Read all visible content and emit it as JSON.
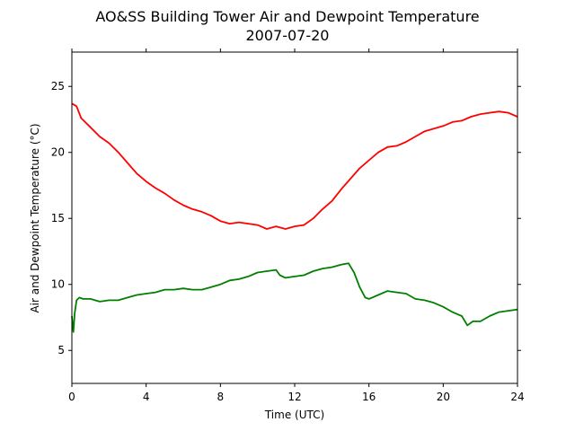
{
  "chart_data": {
    "type": "line",
    "title": "AO&SS Building Tower Air and Dewpoint Temperature",
    "subtitle": "2007-07-20",
    "xlabel": "Time (UTC)",
    "ylabel": "Air and Dewpoint Temperature (°C)",
    "xlim": [
      0,
      24
    ],
    "ylim": [
      2.5,
      27.6
    ],
    "xticks": [
      0,
      4,
      8,
      12,
      16,
      20,
      24
    ],
    "yticks": [
      5,
      10,
      15,
      20,
      25
    ],
    "grid": false,
    "series": [
      {
        "color": "#ff0000",
        "x": [
          0,
          0.25,
          0.5,
          1,
          1.5,
          2,
          2.5,
          3,
          3.5,
          4,
          4.5,
          5,
          5.5,
          6,
          6.5,
          7,
          7.5,
          8,
          8.5,
          9,
          9.5,
          10,
          10.5,
          11,
          11.5,
          12,
          12.5,
          13,
          13.5,
          14,
          14.5,
          15,
          15.5,
          16,
          16.5,
          17,
          17.5,
          18,
          18.5,
          19,
          19.5,
          20,
          20.5,
          21,
          21.5,
          22,
          22.5,
          23,
          23.5,
          24
        ],
        "values": [
          23.7,
          23.5,
          22.6,
          21.9,
          21.2,
          20.7,
          20.0,
          19.2,
          18.4,
          17.8,
          17.3,
          16.9,
          16.4,
          16.0,
          15.7,
          15.5,
          15.2,
          14.8,
          14.6,
          14.7,
          14.6,
          14.5,
          14.2,
          14.4,
          14.2,
          14.4,
          14.5,
          15.0,
          15.7,
          16.3,
          17.2,
          18.0,
          18.8,
          19.4,
          20.0,
          20.4,
          20.5,
          20.8,
          21.2,
          21.6,
          21.8,
          22.0,
          22.3,
          22.4,
          22.7,
          22.9,
          23.0,
          23.1,
          23.0,
          22.7
        ]
      },
      {
        "color": "#008000",
        "x": [
          0,
          0.08,
          0.15,
          0.25,
          0.4,
          0.6,
          1,
          1.5,
          2,
          2.5,
          3,
          3.5,
          4,
          4.5,
          5,
          5.5,
          6,
          6.5,
          7,
          7.5,
          8,
          8.5,
          9,
          9.5,
          10,
          10.5,
          11,
          11.2,
          11.5,
          12,
          12.5,
          13,
          13.5,
          14,
          14.5,
          14.9,
          15.2,
          15.5,
          15.8,
          16,
          16.5,
          17,
          17.5,
          18,
          18.5,
          19,
          19.5,
          20,
          20.5,
          21,
          21.3,
          21.6,
          22,
          22.5,
          23,
          23.5,
          24
        ],
        "values": [
          7.6,
          6.4,
          7.8,
          8.8,
          9.0,
          8.9,
          8.9,
          8.7,
          8.8,
          8.8,
          9.0,
          9.2,
          9.3,
          9.4,
          9.6,
          9.6,
          9.7,
          9.6,
          9.6,
          9.8,
          10.0,
          10.3,
          10.4,
          10.6,
          10.9,
          11.0,
          11.1,
          10.7,
          10.5,
          10.6,
          10.7,
          11.0,
          11.2,
          11.3,
          11.5,
          11.6,
          10.9,
          9.8,
          9.0,
          8.9,
          9.2,
          9.5,
          9.4,
          9.3,
          8.9,
          8.8,
          8.6,
          8.3,
          7.9,
          7.6,
          6.9,
          7.2,
          7.2,
          7.6,
          7.9,
          8.0,
          8.1
        ]
      }
    ]
  }
}
